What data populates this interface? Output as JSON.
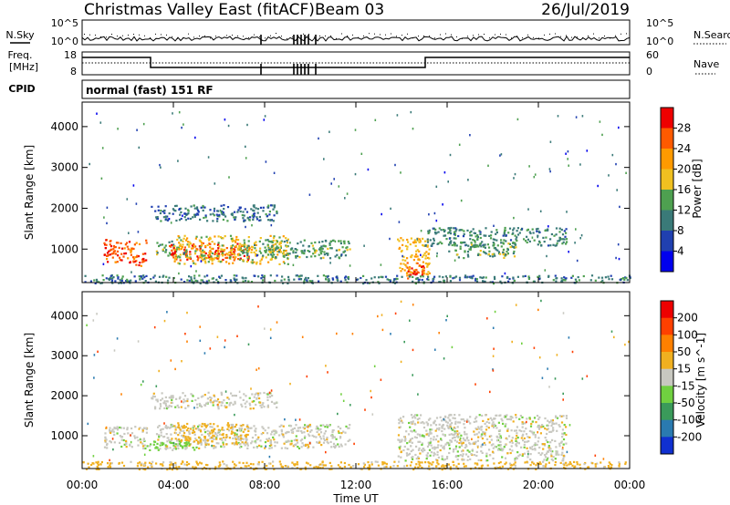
{
  "header": {
    "station": "Christmas Valley East (fitACF)",
    "beam": "Beam 03",
    "date": "26/Jul/2019"
  },
  "summary_panels": {
    "nsky_label": "N.Sky",
    "nsearch_label": "N.Search",
    "nsky_ticks": [
      "10^5",
      "10^0"
    ],
    "nsearch_ticks": [
      "10^5",
      "10^0"
    ],
    "freq_label": "Freq.",
    "freq_unit": "[MHz]",
    "freq_ticks": [
      "18",
      "8"
    ],
    "nave_label": "Nave",
    "nave_ticks": [
      "60",
      "0"
    ],
    "cpid_label": "CPID",
    "cpid_value": "normal (fast) 151 RF"
  },
  "x_axis": {
    "label": "Time UT",
    "ticks": [
      "00:00",
      "04:00",
      "08:00",
      "12:00",
      "16:00",
      "20:00",
      "00:00"
    ]
  },
  "power_panel": {
    "ylabel": "Slant Range [km]",
    "yticks": [
      "1000",
      "2000",
      "3000",
      "4000"
    ],
    "colorbar_label": "Power [dB]",
    "colorbar_ticks": [
      "4",
      "8",
      "12",
      "16",
      "20",
      "24",
      "28"
    ],
    "colors": [
      "#0000ee",
      "#2040b0",
      "#3a7a78",
      "#4ea050",
      "#f0c020",
      "#ff9a00",
      "#ff5a00",
      "#ee0000"
    ]
  },
  "velocity_panel": {
    "ylabel": "Slant Range [km]",
    "yticks": [
      "1000",
      "2000",
      "3000",
      "4000"
    ],
    "colorbar_label": "Velocity [m s^-1]",
    "colorbar_ticks": [
      "200",
      "100",
      "50",
      "15",
      "-15",
      "-50",
      "-100",
      "-200"
    ],
    "colors": [
      "#1030d0",
      "#2a7ab0",
      "#3a9a5a",
      "#70d040",
      "#c8c8c0",
      "#f0b020",
      "#ff8000",
      "#ff4000",
      "#ee0000"
    ]
  },
  "chart_data": [
    {
      "type": "heatmap",
      "name": "power",
      "title": "",
      "xlabel": "Time UT",
      "ylabel": "Slant Range [km]",
      "xlim": [
        0,
        24
      ],
      "ylim": [
        180,
        4600
      ],
      "colorbar": "Power [dB]",
      "regions": [
        {
          "t0": 0.9,
          "t1": 2.8,
          "r0": 700,
          "r1": 1250,
          "value": 26
        },
        {
          "t0": 2.0,
          "t1": 2.8,
          "r0": 600,
          "r1": 800,
          "value": 26
        },
        {
          "t0": 3.2,
          "t1": 4.2,
          "r0": 850,
          "r1": 1250,
          "value": 14
        },
        {
          "t0": 3.8,
          "t1": 7.3,
          "r0": 750,
          "r1": 1180,
          "value": 27
        },
        {
          "t0": 4.0,
          "t1": 9.0,
          "r0": 650,
          "r1": 1350,
          "value": 18
        },
        {
          "t0": 7.0,
          "t1": 11.7,
          "r0": 800,
          "r1": 1250,
          "value": 13
        },
        {
          "t0": 3.0,
          "t1": 8.5,
          "r0": 1700,
          "r1": 2100,
          "value": 9
        },
        {
          "t0": 13.8,
          "t1": 15.2,
          "r0": 400,
          "r1": 1300,
          "value": 20
        },
        {
          "t0": 14.2,
          "t1": 15.0,
          "r0": 300,
          "r1": 700,
          "value": 26
        },
        {
          "t0": 15.0,
          "t1": 21.2,
          "r0": 1100,
          "r1": 1550,
          "value": 11
        },
        {
          "t0": 16.0,
          "t1": 19.0,
          "r0": 800,
          "r1": 1200,
          "value": 13
        },
        {
          "t0": 0.0,
          "t1": 24.0,
          "r0": 180,
          "r1": 380,
          "value": 10
        }
      ]
    },
    {
      "type": "heatmap",
      "name": "velocity",
      "title": "",
      "xlabel": "Time UT",
      "ylabel": "Slant Range [km]",
      "xlim": [
        0,
        24
      ],
      "ylim": [
        180,
        4600
      ],
      "colorbar": "Velocity [m s^-1]",
      "regions": [
        {
          "t0": 0.9,
          "t1": 2.8,
          "r0": 700,
          "r1": 1250,
          "value": 0
        },
        {
          "t0": 3.2,
          "t1": 11.7,
          "r0": 700,
          "r1": 1300,
          "value": 0
        },
        {
          "t0": 4.0,
          "t1": 7.3,
          "r0": 800,
          "r1": 1350,
          "value": -30
        },
        {
          "t0": 2.8,
          "t1": 5.0,
          "r0": 650,
          "r1": 900,
          "value": 30
        },
        {
          "t0": 3.0,
          "t1": 8.5,
          "r0": 1700,
          "r1": 2100,
          "value": 0
        },
        {
          "t0": 13.8,
          "t1": 21.2,
          "r0": 400,
          "r1": 1550,
          "value": 0
        },
        {
          "t0": 0.0,
          "t1": 24.0,
          "r0": 180,
          "r1": 380,
          "value": -30
        }
      ]
    }
  ]
}
